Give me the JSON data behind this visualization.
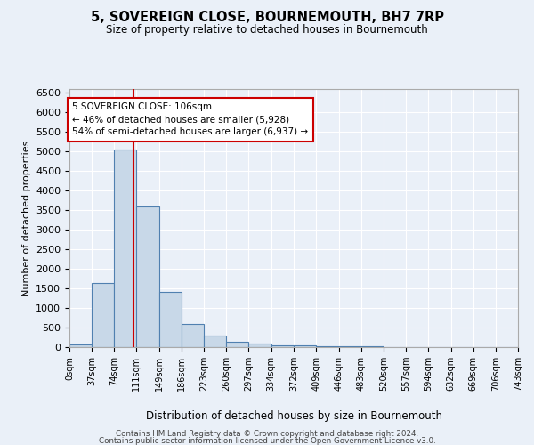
{
  "title": "5, SOVEREIGN CLOSE, BOURNEMOUTH, BH7 7RP",
  "subtitle": "Size of property relative to detached houses in Bournemouth",
  "xlabel": "Distribution of detached houses by size in Bournemouth",
  "ylabel": "Number of detached properties",
  "bin_edges": [
    0,
    37,
    74,
    111,
    149,
    186,
    223,
    260,
    297,
    334,
    372,
    409,
    446,
    483,
    520,
    557,
    594,
    632,
    669,
    706,
    743
  ],
  "bar_heights": [
    75,
    1650,
    5060,
    3590,
    1400,
    590,
    290,
    145,
    80,
    45,
    45,
    30,
    20,
    15,
    10,
    10,
    8,
    6,
    5,
    4
  ],
  "bar_color": "#c8d8e8",
  "bar_edge_color": "#5080b0",
  "property_size": 106,
  "property_line_color": "#cc0000",
  "annotation_line1": "5 SOVEREIGN CLOSE: 106sqm",
  "annotation_line2": "← 46% of detached houses are smaller (5,928)",
  "annotation_line3": "54% of semi-detached houses are larger (6,937) →",
  "annotation_box_color": "#ffffff",
  "annotation_box_edge": "#cc0000",
  "ylim": [
    0,
    6600
  ],
  "yticks": [
    0,
    500,
    1000,
    1500,
    2000,
    2500,
    3000,
    3500,
    4000,
    4500,
    5000,
    5500,
    6000,
    6500
  ],
  "footer_line1": "Contains HM Land Registry data © Crown copyright and database right 2024.",
  "footer_line2": "Contains public sector information licensed under the Open Government Licence v3.0.",
  "bg_color": "#eaf0f8",
  "grid_color": "#ffffff"
}
